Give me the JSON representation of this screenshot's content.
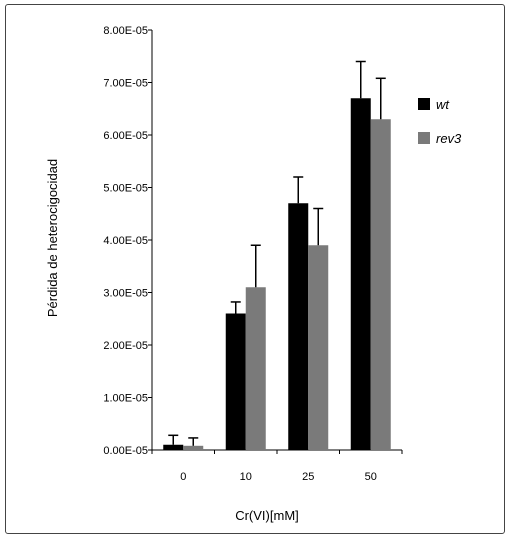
{
  "chart_data": {
    "type": "bar",
    "categories": [
      "0",
      "10",
      "25",
      "50"
    ],
    "series": [
      {
        "name": "wt",
        "color": "#000000",
        "values": [
          1e-06,
          2.6e-05,
          4.7e-05,
          6.7e-05
        ],
        "errors": [
          1.8e-06,
          2.2e-06,
          5e-06,
          7e-06
        ]
      },
      {
        "name": "rev3",
        "color": "#7a7a7a",
        "values": [
          8e-07,
          3.1e-05,
          3.9e-05,
          6.3e-05
        ],
        "errors": [
          1.5e-06,
          8e-06,
          7e-06,
          7.8e-06
        ]
      }
    ],
    "xlabel": "Cr(VI)[mM]",
    "ylabel": "Pérdida de heterocigocidad",
    "ylim": [
      0,
      8e-05
    ],
    "yticks": [
      "0.00E-05",
      "1.00E-05",
      "2.00E-05",
      "3.00E-05",
      "4.00E-05",
      "5.00E-05",
      "6.00E-05",
      "7.00E-05",
      "8.00E-05"
    ],
    "grid": false,
    "legend": "right"
  }
}
